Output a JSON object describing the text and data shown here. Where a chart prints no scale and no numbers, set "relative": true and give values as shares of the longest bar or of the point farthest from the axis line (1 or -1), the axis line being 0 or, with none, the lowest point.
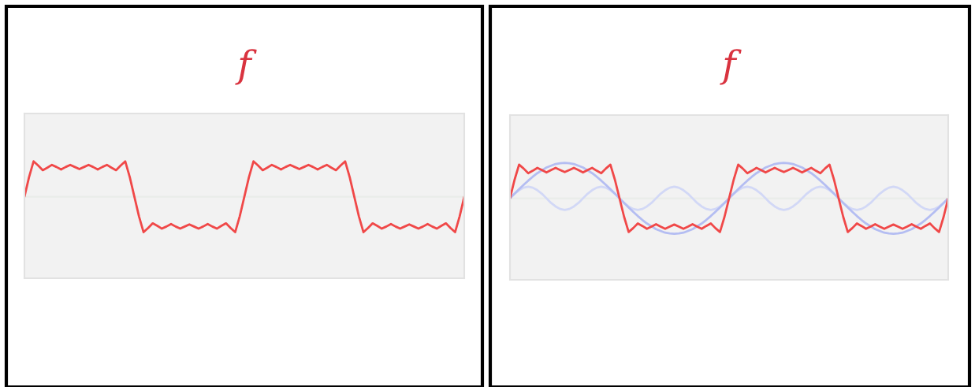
{
  "chart_data": [
    {
      "type": "line",
      "title": "f",
      "relative": true,
      "tick_labels": false,
      "categories": [
        null,
        null,
        null,
        null,
        null,
        null,
        null,
        null,
        null,
        null,
        null,
        null,
        null,
        null,
        null,
        null,
        null,
        null,
        null,
        null,
        null,
        null,
        null,
        null,
        null,
        null,
        null,
        null,
        null,
        null,
        null,
        null,
        null,
        null,
        null,
        null,
        null,
        null,
        null,
        null,
        null,
        null,
        null,
        null,
        null,
        null,
        null,
        null,
        null,
        null,
        null,
        null,
        null,
        null,
        null,
        null,
        null,
        null,
        null,
        null,
        null,
        null,
        null,
        null,
        null,
        null,
        null,
        null,
        null,
        null,
        null,
        null,
        null,
        null,
        null,
        null,
        null,
        null,
        null,
        null,
        null,
        null,
        null,
        null,
        null,
        null,
        null,
        null,
        null,
        null,
        null,
        null,
        null,
        null,
        null,
        null,
        null
      ],
      "series": [
        {
          "color": "#f04848",
          "values": [
            0,
            0.55,
            1,
            0.88,
            0.75,
            0.82,
            0.9,
            0.84,
            0.77,
            0.84,
            0.9,
            0.84,
            0.78,
            0.84,
            0.9,
            0.84,
            0.77,
            0.84,
            0.9,
            0.82,
            0.75,
            0.88,
            1,
            0.55,
            0,
            -0.55,
            -1,
            -0.88,
            -0.75,
            -0.82,
            -0.9,
            -0.84,
            -0.77,
            -0.84,
            -0.9,
            -0.84,
            -0.78,
            -0.84,
            -0.9,
            -0.84,
            -0.77,
            -0.84,
            -0.9,
            -0.82,
            -0.75,
            -0.88,
            -1,
            -0.55,
            0,
            0.55,
            1,
            0.88,
            0.75,
            0.82,
            0.9,
            0.84,
            0.77,
            0.84,
            0.9,
            0.84,
            0.78,
            0.84,
            0.9,
            0.84,
            0.77,
            0.84,
            0.9,
            0.82,
            0.75,
            0.88,
            1,
            0.55,
            0,
            -0.55,
            -1,
            -0.88,
            -0.75,
            -0.82,
            -0.9,
            -0.84,
            -0.77,
            -0.84,
            -0.9,
            -0.84,
            -0.78,
            -0.84,
            -0.9,
            -0.84,
            -0.77,
            -0.84,
            -0.9,
            -0.82,
            -0.75,
            -0.88,
            -1,
            -0.55,
            0
          ]
        }
      ]
    },
    {
      "type": "line",
      "title": "f",
      "relative": true,
      "tick_labels": false,
      "categories": [
        null,
        null,
        null,
        null,
        null,
        null,
        null,
        null,
        null,
        null,
        null,
        null,
        null,
        null,
        null,
        null,
        null,
        null,
        null,
        null,
        null,
        null,
        null,
        null,
        null,
        null,
        null,
        null,
        null,
        null,
        null,
        null,
        null,
        null,
        null,
        null,
        null,
        null,
        null,
        null,
        null,
        null,
        null,
        null,
        null,
        null,
        null,
        null,
        null,
        null,
        null,
        null,
        null,
        null,
        null,
        null,
        null,
        null,
        null,
        null,
        null,
        null,
        null,
        null,
        null,
        null,
        null,
        null,
        null,
        null,
        null,
        null,
        null,
        null,
        null,
        null,
        null,
        null,
        null,
        null,
        null,
        null,
        null,
        null,
        null,
        null,
        null,
        null,
        null,
        null,
        null,
        null,
        null,
        null,
        null,
        null,
        null
      ],
      "series": [
        {
          "color": "#d2d8f6",
          "values": [
            0,
            0.13,
            0.23,
            0.3,
            0.33,
            0.3,
            0.23,
            0.13,
            0,
            -0.13,
            -0.23,
            -0.3,
            -0.33,
            -0.3,
            -0.23,
            -0.13,
            0,
            0.13,
            0.23,
            0.3,
            0.33,
            0.3,
            0.23,
            0.13,
            0,
            -0.13,
            -0.23,
            -0.3,
            -0.33,
            -0.3,
            -0.23,
            -0.13,
            0,
            0.13,
            0.23,
            0.3,
            0.33,
            0.3,
            0.23,
            0.13,
            0,
            -0.13,
            -0.23,
            -0.3,
            -0.33,
            -0.3,
            -0.23,
            -0.13,
            0,
            0.13,
            0.23,
            0.3,
            0.33,
            0.3,
            0.23,
            0.13,
            0,
            -0.13,
            -0.23,
            -0.3,
            -0.33,
            -0.3,
            -0.23,
            -0.13,
            0,
            0.13,
            0.23,
            0.3,
            0.33,
            0.3,
            0.23,
            0.13,
            0,
            -0.13,
            -0.23,
            -0.3,
            -0.33,
            -0.3,
            -0.23,
            -0.13,
            0,
            0.13,
            0.23,
            0.3,
            0.33,
            0.3,
            0.23,
            0.13,
            0,
            -0.13,
            -0.23,
            -0.3,
            -0.33,
            -0.3,
            -0.23,
            -0.13,
            0
          ]
        },
        {
          "color": "#b4bdf2",
          "values": [
            0,
            0.13,
            0.26,
            0.38,
            0.5,
            0.61,
            0.71,
            0.79,
            0.87,
            0.92,
            0.97,
            0.99,
            1,
            0.99,
            0.97,
            0.92,
            0.87,
            0.79,
            0.71,
            0.61,
            0.5,
            0.38,
            0.26,
            0.13,
            0,
            -0.13,
            -0.26,
            -0.38,
            -0.5,
            -0.61,
            -0.71,
            -0.79,
            -0.87,
            -0.92,
            -0.97,
            -0.99,
            -1,
            -0.99,
            -0.97,
            -0.92,
            -0.87,
            -0.79,
            -0.71,
            -0.61,
            -0.5,
            -0.38,
            -0.26,
            -0.13,
            0,
            0.13,
            0.26,
            0.38,
            0.5,
            0.61,
            0.71,
            0.79,
            0.87,
            0.92,
            0.97,
            0.99,
            1,
            0.99,
            0.97,
            0.92,
            0.87,
            0.79,
            0.71,
            0.61,
            0.5,
            0.38,
            0.26,
            0.13,
            0,
            -0.13,
            -0.26,
            -0.38,
            -0.5,
            -0.61,
            -0.71,
            -0.79,
            -0.87,
            -0.92,
            -0.97,
            -0.99,
            -1,
            -0.99,
            -0.97,
            -0.92,
            -0.87,
            -0.79,
            -0.71,
            -0.61,
            -0.5,
            -0.38,
            -0.26,
            -0.13,
            0
          ]
        },
        {
          "color": "#f04848",
          "values": [
            0,
            0.52,
            0.95,
            0.84,
            0.71,
            0.78,
            0.86,
            0.8,
            0.73,
            0.8,
            0.86,
            0.8,
            0.74,
            0.8,
            0.86,
            0.8,
            0.73,
            0.8,
            0.86,
            0.78,
            0.71,
            0.84,
            0.95,
            0.52,
            0,
            -0.52,
            -0.95,
            -0.84,
            -0.71,
            -0.78,
            -0.86,
            -0.8,
            -0.73,
            -0.8,
            -0.86,
            -0.8,
            -0.74,
            -0.8,
            -0.86,
            -0.8,
            -0.73,
            -0.8,
            -0.86,
            -0.78,
            -0.71,
            -0.84,
            -0.95,
            -0.52,
            0,
            0.52,
            0.95,
            0.84,
            0.71,
            0.78,
            0.86,
            0.8,
            0.73,
            0.8,
            0.86,
            0.8,
            0.74,
            0.8,
            0.86,
            0.8,
            0.73,
            0.8,
            0.86,
            0.78,
            0.71,
            0.84,
            0.95,
            0.52,
            0,
            -0.52,
            -0.95,
            -0.84,
            -0.71,
            -0.78,
            -0.86,
            -0.8,
            -0.73,
            -0.8,
            -0.86,
            -0.8,
            -0.74,
            -0.8,
            -0.86,
            -0.8,
            -0.73,
            -0.8,
            -0.86,
            -0.78,
            -0.71,
            -0.84,
            -0.95,
            -0.52,
            0
          ]
        }
      ]
    }
  ]
}
